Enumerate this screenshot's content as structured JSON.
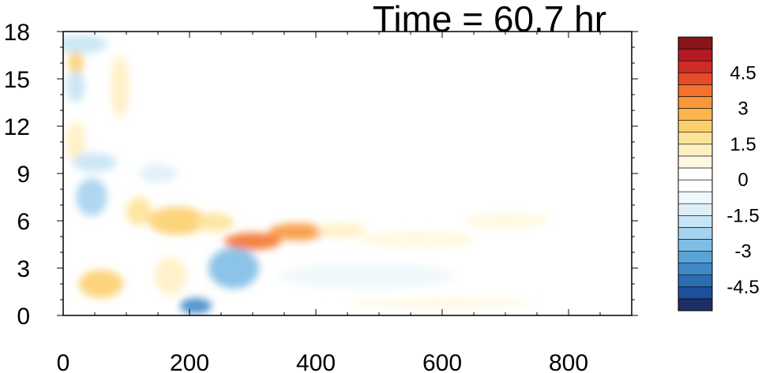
{
  "chart_data": {
    "type": "heatmap",
    "title": "Time = 60.7 hr",
    "xlabel": "",
    "ylabel": "",
    "xlim": [
      0,
      900
    ],
    "ylim": [
      0,
      18
    ],
    "x_ticks": [
      0,
      200,
      400,
      600,
      800
    ],
    "y_ticks": [
      0,
      3,
      6,
      9,
      12,
      15,
      18
    ],
    "colorbar": {
      "levels": [
        -5.5,
        -5,
        -4.5,
        -4,
        -3.5,
        -3,
        -2.5,
        -2,
        -1.5,
        -1,
        -0.5,
        0,
        0.5,
        1,
        1.5,
        2,
        2.5,
        3,
        3.5,
        4,
        4.5,
        5,
        5.5
      ],
      "labeled_ticks": [
        -4.5,
        -3,
        -1.5,
        0,
        1.5,
        3,
        4.5
      ],
      "colors": [
        "#1d2f66",
        "#1f4f9a",
        "#2c6cb2",
        "#3f88c6",
        "#5aa3d6",
        "#7fbde6",
        "#a6d3f0",
        "#c6e4f5",
        "#deeff8",
        "#eef7fb",
        "#ffffff",
        "#ffffff",
        "#fff8e0",
        "#fff0c2",
        "#fde39a",
        "#fccf6e",
        "#fbb54b",
        "#f8963a",
        "#f2722e",
        "#e54b29",
        "#d02b26",
        "#b31a22",
        "#8b1419"
      ]
    },
    "features": [
      {
        "x": 120,
        "y": 6.6,
        "rx": 20,
        "ry": 0.9,
        "value": 2.0
      },
      {
        "x": 180,
        "y": 6.0,
        "rx": 45,
        "ry": 0.9,
        "value": 2.5
      },
      {
        "x": 240,
        "y": 5.9,
        "rx": 30,
        "ry": 0.6,
        "value": 2.0
      },
      {
        "x": 300,
        "y": 4.7,
        "rx": 45,
        "ry": 0.55,
        "value": 4.0
      },
      {
        "x": 370,
        "y": 5.3,
        "rx": 45,
        "ry": 0.55,
        "value": 3.5
      },
      {
        "x": 440,
        "y": 5.4,
        "rx": 40,
        "ry": 0.45,
        "value": 1.5
      },
      {
        "x": 560,
        "y": 4.8,
        "rx": 90,
        "ry": 0.6,
        "value": 0.8
      },
      {
        "x": 700,
        "y": 6.0,
        "rx": 70,
        "ry": 0.5,
        "value": 0.8
      },
      {
        "x": 20,
        "y": 16.0,
        "rx": 12,
        "ry": 0.8,
        "value": 2.5
      },
      {
        "x": 20,
        "y": 11.0,
        "rx": 15,
        "ry": 1.3,
        "value": 1.5
      },
      {
        "x": 90,
        "y": 14.5,
        "rx": 15,
        "ry": 2.0,
        "value": 1.5
      },
      {
        "x": 60,
        "y": 2.0,
        "rx": 35,
        "ry": 0.9,
        "value": 2.5
      },
      {
        "x": 170,
        "y": 2.5,
        "rx": 25,
        "ry": 1.2,
        "value": 1.5
      },
      {
        "x": 30,
        "y": 17.2,
        "rx": 40,
        "ry": 0.6,
        "value": -1.5
      },
      {
        "x": 20,
        "y": 14.5,
        "rx": 15,
        "ry": 1.0,
        "value": -1.5
      },
      {
        "x": 50,
        "y": 9.7,
        "rx": 35,
        "ry": 0.6,
        "value": -1.5
      },
      {
        "x": 45,
        "y": 7.5,
        "rx": 25,
        "ry": 1.2,
        "value": -2.0
      },
      {
        "x": 150,
        "y": 9.0,
        "rx": 30,
        "ry": 0.6,
        "value": -1.0
      },
      {
        "x": 270,
        "y": 3.0,
        "rx": 40,
        "ry": 1.3,
        "value": -2.5
      },
      {
        "x": 210,
        "y": 0.6,
        "rx": 25,
        "ry": 0.5,
        "value": -3.5
      },
      {
        "x": 480,
        "y": 2.5,
        "rx": 140,
        "ry": 0.8,
        "value": -0.8
      },
      {
        "x": 600,
        "y": 0.8,
        "rx": 150,
        "ry": 0.3,
        "value": 0.8
      }
    ]
  }
}
